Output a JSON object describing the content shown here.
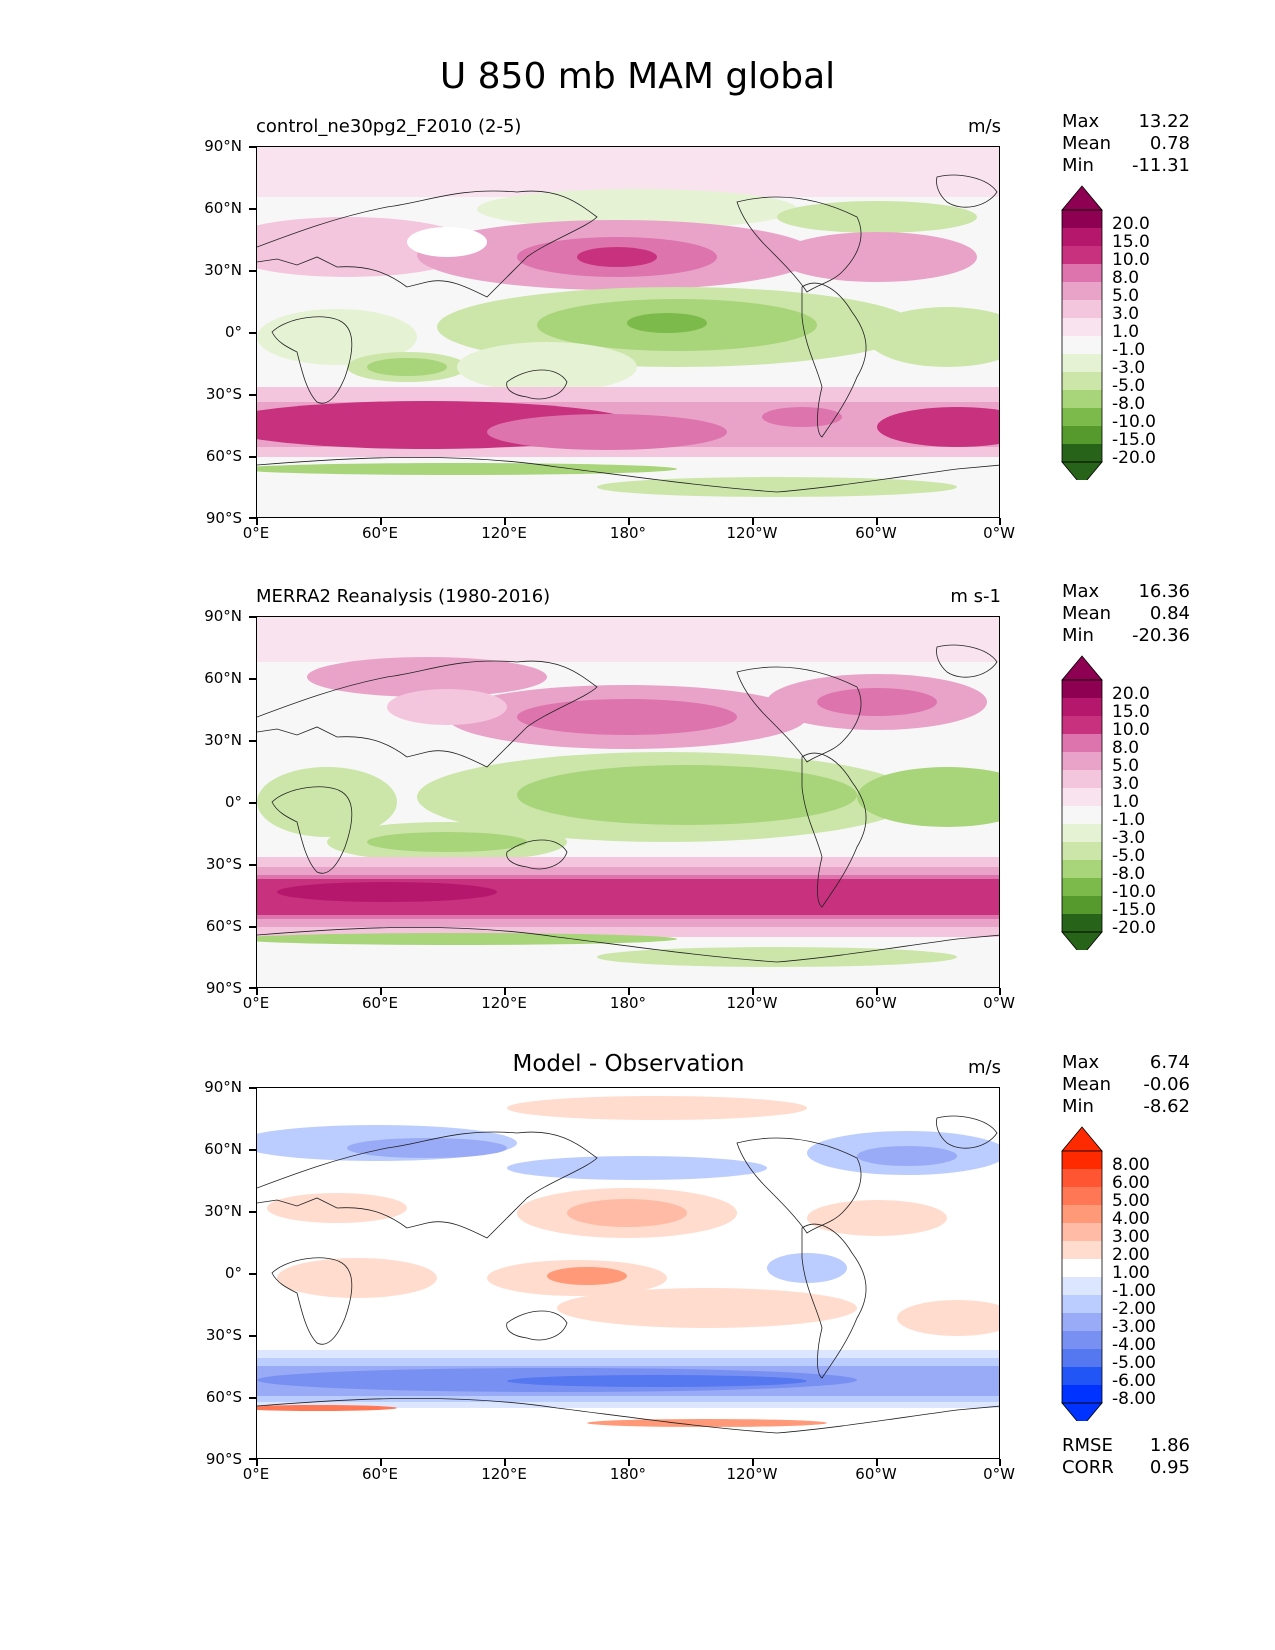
{
  "title": "U 850 mb MAM global",
  "panels": [
    {
      "left_title": "control_ne30pg2_F2010 (2-5)",
      "center_title": "",
      "units": "m/s",
      "stats": {
        "max_label": "Max",
        "max": "13.22",
        "mean_label": "Mean",
        "mean": "0.78",
        "min_label": "Min",
        "min": "-11.31"
      },
      "colorbar_labels": [
        "20.0",
        "15.0",
        "10.0",
        "8.0",
        "5.0",
        "3.0",
        "1.0",
        "-1.0",
        "-3.0",
        "-5.0",
        "-8.0",
        "-10.0",
        "-15.0",
        "-20.0"
      ]
    },
    {
      "left_title": "MERRA2 Reanalysis (1980-2016)",
      "center_title": "",
      "units": "m s-1",
      "stats": {
        "max_label": "Max",
        "max": "16.36",
        "mean_label": "Mean",
        "mean": "0.84",
        "min_label": "Min",
        "min": "-20.36"
      },
      "colorbar_labels": [
        "20.0",
        "15.0",
        "10.0",
        "8.0",
        "5.0",
        "3.0",
        "1.0",
        "-1.0",
        "-3.0",
        "-5.0",
        "-8.0",
        "-10.0",
        "-15.0",
        "-20.0"
      ]
    },
    {
      "left_title": "",
      "center_title": "Model - Observation",
      "units": "m/s",
      "stats": {
        "max_label": "Max",
        "max": "6.74",
        "mean_label": "Mean",
        "mean": "-0.06",
        "min_label": "Min",
        "min": "-8.62"
      },
      "colorbar_labels": [
        "8.00",
        "6.00",
        "5.00",
        "4.00",
        "3.00",
        "2.00",
        "1.00",
        "-1.00",
        "-2.00",
        "-3.00",
        "-4.00",
        "-5.00",
        "-6.00",
        "-8.00"
      ],
      "metrics": {
        "rmse_label": "RMSE",
        "rmse": "1.86",
        "corr_label": "CORR",
        "corr": "0.95"
      }
    }
  ],
  "axes": {
    "y_ticks": [
      "90°N",
      "60°N",
      "30°N",
      "0°",
      "30°S",
      "60°S",
      "90°S"
    ],
    "x_ticks": [
      "0°E",
      "60°E",
      "120°E",
      "180°",
      "120°W",
      "60°W",
      "0°W"
    ]
  },
  "colors": {
    "seq": [
      "#8e0152",
      "#b4176b",
      "#c7317e",
      "#dd74ad",
      "#e9a3c9",
      "#f3c6de",
      "#f9e3ee",
      "#f7f7f7",
      "#e6f2d4",
      "#cbe6a8",
      "#a8d47a",
      "#7cba4b",
      "#569a2e",
      "#276419"
    ],
    "div": [
      "#ff2a00",
      "#ff5533",
      "#ff7755",
      "#ff9977",
      "#ffbba5",
      "#ffdccd",
      "#ffffff",
      "#dde6ff",
      "#bbccff",
      "#99aaf7",
      "#7790f2",
      "#5577f0",
      "#2255f5",
      "#0033ff"
    ]
  }
}
